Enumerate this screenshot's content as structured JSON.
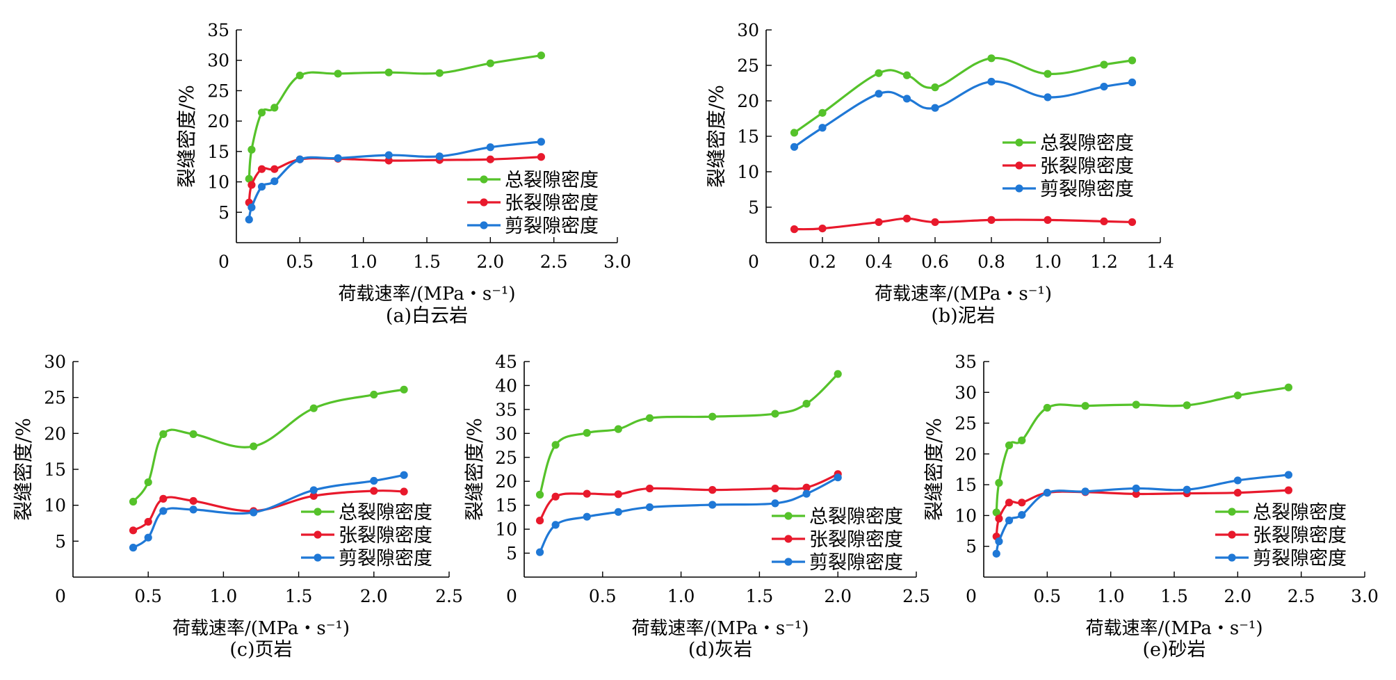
{
  "chart_data": [
    {
      "type": "line",
      "caption": "(a)白云岩",
      "xlabel": "荷载速率/(MPa・s⁻¹)",
      "ylabel": "裂缝密度/%",
      "xlim": [
        0,
        3.0
      ],
      "ylim": [
        0,
        35
      ],
      "xticks": [
        0,
        0.5,
        1.0,
        1.5,
        2.0,
        2.5,
        3.0
      ],
      "xtick_labels": [
        "0",
        "0.5",
        "1.0",
        "1.5",
        "2.0",
        "2.5",
        "3.0"
      ],
      "yticks": [
        5,
        10,
        15,
        20,
        25,
        30,
        35
      ],
      "ytick_labels": [
        "5",
        "10",
        "15",
        "20",
        "25",
        "30",
        "35"
      ],
      "legend_position": "bottom-right",
      "x": [
        0.1,
        0.12,
        0.2,
        0.3,
        0.5,
        0.8,
        1.2,
        1.6,
        2.0,
        2.4
      ],
      "series": [
        {
          "name": "总裂隙密度",
          "color": "#55c22a",
          "values": [
            10.5,
            15.3,
            21.4,
            22.2,
            27.5,
            27.8,
            28.0,
            27.9,
            29.5,
            30.8
          ]
        },
        {
          "name": "张裂隙密度",
          "color": "#e8192c",
          "values": [
            6.6,
            9.5,
            12.1,
            12.1,
            13.7,
            13.8,
            13.5,
            13.6,
            13.7,
            14.1
          ]
        },
        {
          "name": "剪裂隙密度",
          "color": "#1f78d6",
          "values": [
            3.8,
            5.8,
            9.2,
            10.1,
            13.7,
            13.9,
            14.4,
            14.2,
            15.7,
            16.6
          ]
        }
      ]
    },
    {
      "type": "line",
      "caption": "(b)泥岩",
      "xlabel": "荷载速率/(MPa・s⁻¹)",
      "ylabel": "裂缝密度/%",
      "xlim": [
        0,
        1.4
      ],
      "ylim": [
        0,
        30
      ],
      "xticks": [
        0,
        0.2,
        0.4,
        0.6,
        0.8,
        1.0,
        1.2,
        1.4
      ],
      "xtick_labels": [
        "0",
        "0.2",
        "0.4",
        "0.6",
        "0.8",
        "1.0",
        "1.2",
        "1.4"
      ],
      "yticks": [
        5,
        10,
        15,
        20,
        25,
        30
      ],
      "ytick_labels": [
        "5",
        "10",
        "15",
        "20",
        "25",
        "30"
      ],
      "legend_position": "middle-right",
      "x": [
        0.1,
        0.2,
        0.4,
        0.5,
        0.6,
        0.8,
        1.0,
        1.2,
        1.3
      ],
      "series": [
        {
          "name": "总裂隙密度",
          "color": "#55c22a",
          "values": [
            15.5,
            18.3,
            23.9,
            23.6,
            21.9,
            26.0,
            23.8,
            25.1,
            25.7
          ]
        },
        {
          "name": "张裂隙密度",
          "color": "#e8192c",
          "values": [
            1.9,
            2.0,
            2.9,
            3.4,
            2.9,
            3.2,
            3.2,
            3.0,
            2.9
          ]
        },
        {
          "name": "剪裂隙密度",
          "color": "#1f78d6",
          "values": [
            13.5,
            16.2,
            21.0,
            20.3,
            19.0,
            22.7,
            20.5,
            22.0,
            22.6
          ]
        }
      ]
    },
    {
      "type": "line",
      "caption": "(c)页岩",
      "xlabel": "荷载速率/(MPa・s⁻¹)",
      "ylabel": "裂缝密度/%",
      "xlim": [
        0,
        2.5
      ],
      "ylim": [
        0,
        30
      ],
      "xticks": [
        0,
        0.5,
        1.0,
        1.5,
        2.0,
        2.5
      ],
      "xtick_labels": [
        "0",
        "0.5",
        "1.0",
        "1.5",
        "2.0",
        "2.5"
      ],
      "yticks": [
        5,
        10,
        15,
        20,
        25,
        30
      ],
      "ytick_labels": [
        "5",
        "10",
        "15",
        "20",
        "25",
        "30"
      ],
      "legend_position": "bottom-right",
      "x": [
        0.4,
        0.5,
        0.6,
        0.8,
        1.2,
        1.6,
        2.0,
        2.2
      ],
      "series": [
        {
          "name": "总裂隙密度",
          "color": "#55c22a",
          "values": [
            10.5,
            13.2,
            19.9,
            19.9,
            18.2,
            23.5,
            25.4,
            26.1
          ]
        },
        {
          "name": "张裂隙密度",
          "color": "#e8192c",
          "values": [
            6.5,
            7.7,
            10.9,
            10.6,
            9.2,
            11.3,
            12.0,
            11.9
          ]
        },
        {
          "name": "剪裂隙密度",
          "color": "#1f78d6",
          "values": [
            4.1,
            5.5,
            9.2,
            9.4,
            9.0,
            12.1,
            13.4,
            14.2
          ]
        }
      ]
    },
    {
      "type": "line",
      "caption": "(d)灰岩",
      "xlabel": "荷载速率/(MPa・s⁻¹)",
      "ylabel": "裂缝密度/%",
      "xlim": [
        0,
        2.5
      ],
      "ylim": [
        0,
        45
      ],
      "xticks": [
        0,
        0.5,
        1.0,
        1.5,
        2.0,
        2.5
      ],
      "xtick_labels": [
        "0",
        "0.5",
        "1.0",
        "1.5",
        "2.0",
        "2.5"
      ],
      "yticks": [
        5,
        10,
        15,
        20,
        25,
        30,
        35,
        40,
        45
      ],
      "ytick_labels": [
        "5",
        "10",
        "15",
        "20",
        "25",
        "30",
        "35",
        "40",
        "45"
      ],
      "legend_position": "bottom-right",
      "x": [
        0.1,
        0.2,
        0.4,
        0.6,
        0.8,
        1.2,
        1.6,
        1.8,
        2.0
      ],
      "series": [
        {
          "name": "总裂隙密度",
          "color": "#55c22a",
          "values": [
            17.2,
            27.6,
            30.1,
            30.9,
            33.2,
            33.5,
            34.1,
            36.2,
            42.4
          ]
        },
        {
          "name": "张裂隙密度",
          "color": "#e8192c",
          "values": [
            11.8,
            16.8,
            17.4,
            17.3,
            18.5,
            18.2,
            18.5,
            18.7,
            21.5
          ]
        },
        {
          "name": "剪裂隙密度",
          "color": "#1f78d6",
          "values": [
            5.2,
            10.9,
            12.6,
            13.6,
            14.6,
            15.1,
            15.4,
            17.4,
            20.8
          ]
        }
      ]
    },
    {
      "type": "line",
      "caption": "(e)砂岩",
      "xlabel": "荷载速率/(MPa・s⁻¹)",
      "ylabel": "裂缝密度/%",
      "xlim": [
        0,
        3.0
      ],
      "ylim": [
        0,
        35
      ],
      "xticks": [
        0,
        0.5,
        1.0,
        1.5,
        2.0,
        2.5,
        3.0
      ],
      "xtick_labels": [
        "0",
        "0.5",
        "1.0",
        "1.5",
        "2.0",
        "2.5",
        "3.0"
      ],
      "yticks": [
        5,
        10,
        15,
        20,
        25,
        30,
        35
      ],
      "ytick_labels": [
        "5",
        "10",
        "15",
        "20",
        "25",
        "30",
        "35"
      ],
      "legend_position": "bottom-right",
      "x": [
        0.1,
        0.12,
        0.2,
        0.3,
        0.5,
        0.8,
        1.2,
        1.6,
        2.0,
        2.4
      ],
      "series": [
        {
          "name": "总裂隙密度",
          "color": "#55c22a",
          "values": [
            10.5,
            15.3,
            21.4,
            22.2,
            27.5,
            27.8,
            28.0,
            27.9,
            29.5,
            30.8
          ]
        },
        {
          "name": "张裂隙密度",
          "color": "#e8192c",
          "values": [
            6.6,
            9.5,
            12.1,
            12.1,
            13.7,
            13.8,
            13.5,
            13.6,
            13.7,
            14.1
          ]
        },
        {
          "name": "剪裂隙密度",
          "color": "#1f78d6",
          "values": [
            3.8,
            5.8,
            9.2,
            10.1,
            13.7,
            13.9,
            14.4,
            14.2,
            15.7,
            16.6
          ]
        }
      ]
    }
  ]
}
